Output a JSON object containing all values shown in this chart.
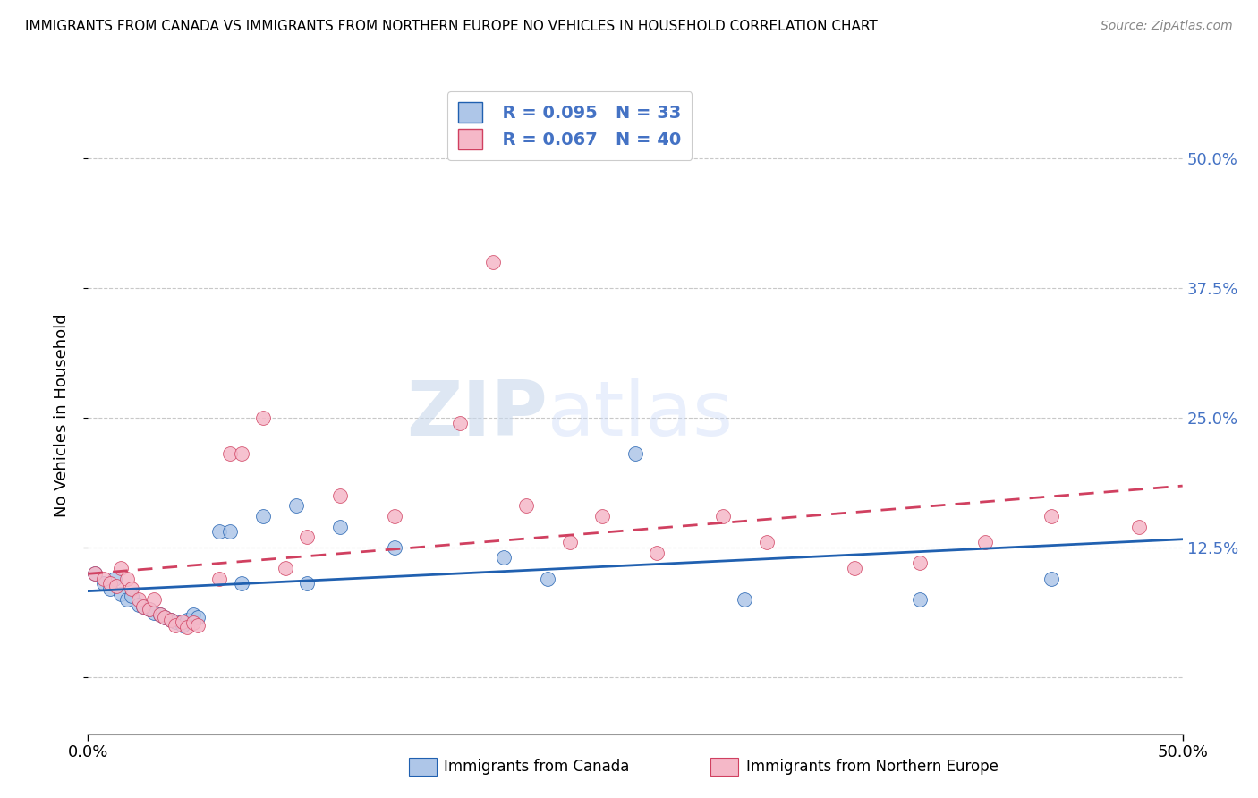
{
  "title": "IMMIGRANTS FROM CANADA VS IMMIGRANTS FROM NORTHERN EUROPE NO VEHICLES IN HOUSEHOLD CORRELATION CHART",
  "source": "Source: ZipAtlas.com",
  "ylabel": "No Vehicles in Household",
  "y_ticks": [
    0.0,
    0.125,
    0.25,
    0.375,
    0.5
  ],
  "y_tick_labels": [
    "",
    "12.5%",
    "25.0%",
    "37.5%",
    "50.0%"
  ],
  "xlim": [
    0.0,
    0.5
  ],
  "ylim": [
    -0.055,
    0.56
  ],
  "watermark_zip": "ZIP",
  "watermark_atlas": "atlas",
  "legend_R1": "R = 0.095",
  "legend_N1": "N = 33",
  "legend_R2": "R = 0.067",
  "legend_N2": "N = 40",
  "color_canada": "#aec6e8",
  "color_northern_europe": "#f5b8c8",
  "trendline_color_canada": "#2060b0",
  "trendline_color_ne": "#d04060",
  "label_canada": "Immigrants from Canada",
  "label_ne": "Immigrants from Northern Europe",
  "canada_x": [
    0.003,
    0.007,
    0.01,
    0.012,
    0.015,
    0.018,
    0.02,
    0.023,
    0.025,
    0.028,
    0.03,
    0.033,
    0.035,
    0.038,
    0.04,
    0.043,
    0.045,
    0.048,
    0.05,
    0.06,
    0.065,
    0.07,
    0.08,
    0.095,
    0.1,
    0.115,
    0.14,
    0.19,
    0.21,
    0.25,
    0.3,
    0.38,
    0.44
  ],
  "canada_y": [
    0.1,
    0.09,
    0.085,
    0.095,
    0.08,
    0.075,
    0.078,
    0.07,
    0.068,
    0.065,
    0.062,
    0.06,
    0.058,
    0.055,
    0.053,
    0.05,
    0.055,
    0.06,
    0.058,
    0.14,
    0.14,
    0.09,
    0.155,
    0.165,
    0.09,
    0.145,
    0.125,
    0.115,
    0.095,
    0.215,
    0.075,
    0.075,
    0.095
  ],
  "ne_x": [
    0.003,
    0.007,
    0.01,
    0.013,
    0.015,
    0.018,
    0.02,
    0.023,
    0.025,
    0.028,
    0.03,
    0.033,
    0.035,
    0.038,
    0.04,
    0.043,
    0.045,
    0.048,
    0.05,
    0.06,
    0.065,
    0.07,
    0.08,
    0.09,
    0.1,
    0.115,
    0.14,
    0.17,
    0.185,
    0.2,
    0.22,
    0.235,
    0.26,
    0.29,
    0.31,
    0.35,
    0.38,
    0.41,
    0.44,
    0.48
  ],
  "ne_y": [
    0.1,
    0.095,
    0.09,
    0.088,
    0.105,
    0.095,
    0.085,
    0.075,
    0.068,
    0.065,
    0.075,
    0.06,
    0.058,
    0.055,
    0.05,
    0.053,
    0.048,
    0.052,
    0.05,
    0.095,
    0.215,
    0.215,
    0.25,
    0.105,
    0.135,
    0.175,
    0.155,
    0.245,
    0.4,
    0.165,
    0.13,
    0.155,
    0.12,
    0.155,
    0.13,
    0.105,
    0.11,
    0.13,
    0.155,
    0.145
  ]
}
